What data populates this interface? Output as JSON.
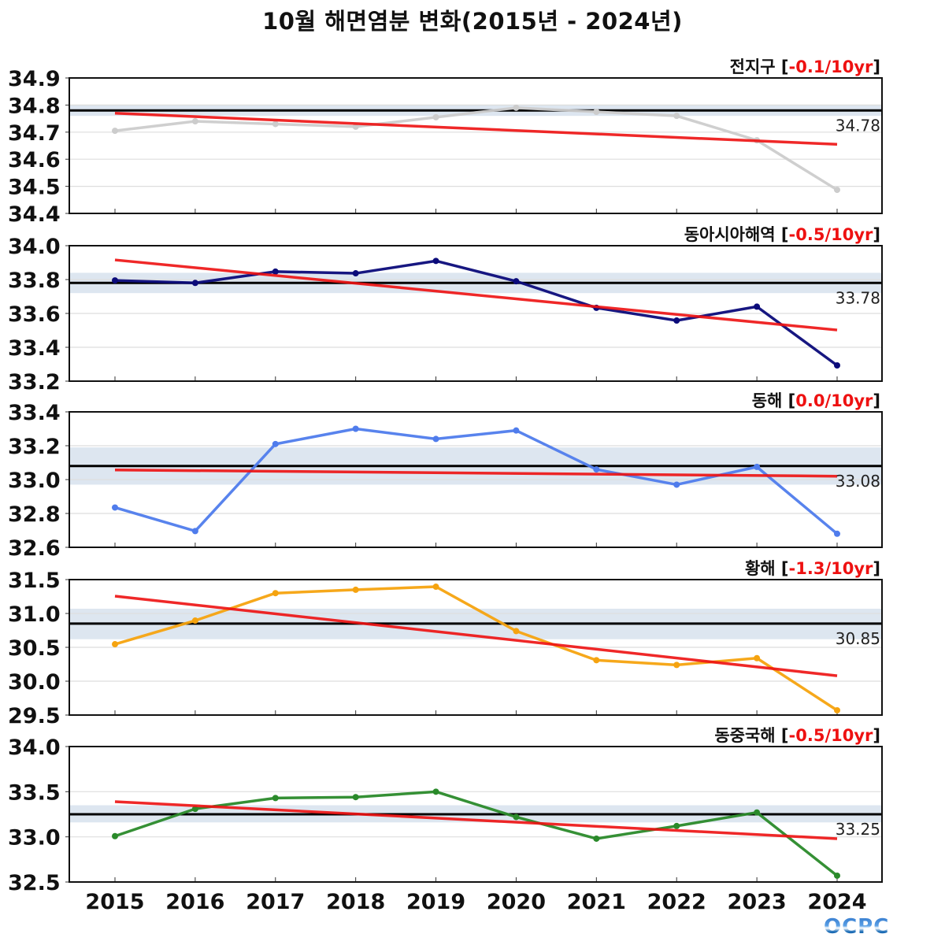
{
  "title": "10월 해면염분 변화(2015년 - 2024년)",
  "logo": "OCPC",
  "chart_data": {
    "type": "line",
    "title": "10월 해면염분 변화(2015년 - 2024년)",
    "xlabel": "",
    "ylabel": "",
    "x": [
      2015,
      2016,
      2017,
      2018,
      2019,
      2020,
      2021,
      2022,
      2023,
      2024
    ],
    "x_tick_labels": [
      "2015",
      "2016",
      "2017",
      "2018",
      "2019",
      "2020",
      "2021",
      "2022",
      "2023",
      "2024"
    ],
    "grid": true,
    "panels": [
      {
        "name": "전지구",
        "trend_label": "-0.1/10yr",
        "color": "#cccccc",
        "ylim": [
          34.4,
          34.9
        ],
        "yticks": [
          "34.4",
          "34.5",
          "34.6",
          "34.7",
          "34.8",
          "34.9"
        ],
        "ytick_values": [
          34.4,
          34.5,
          34.6,
          34.7,
          34.8,
          34.9
        ],
        "values": [
          34.705,
          34.74,
          34.73,
          34.72,
          34.755,
          34.79,
          34.775,
          34.76,
          34.67,
          34.487
        ],
        "mean": 34.78,
        "mean_label": "34.78",
        "band": [
          34.76,
          34.8
        ],
        "trend": [
          34.77,
          34.655
        ]
      },
      {
        "name": "동아시아해역",
        "trend_label": "-0.5/10yr",
        "color": "#0b0b7a",
        "ylim": [
          33.2,
          34.0
        ],
        "yticks": [
          "33.2",
          "33.4",
          "33.6",
          "33.8",
          "34.0"
        ],
        "ytick_values": [
          33.2,
          33.4,
          33.6,
          33.8,
          34.0
        ],
        "values": [
          33.795,
          33.78,
          33.847,
          33.837,
          33.91,
          33.79,
          33.633,
          33.558,
          33.64,
          33.293
        ],
        "mean": 33.78,
        "mean_label": "33.78",
        "band": [
          33.72,
          33.84
        ],
        "trend": [
          33.916,
          33.502
        ]
      },
      {
        "name": "동해",
        "trend_label": "0.0/10yr",
        "color": "#4f7cec",
        "ylim": [
          32.6,
          33.4
        ],
        "yticks": [
          "32.6",
          "32.8",
          "33.0",
          "33.2",
          "33.4"
        ],
        "ytick_values": [
          32.6,
          32.8,
          33.0,
          33.2,
          33.4
        ],
        "values": [
          32.835,
          32.696,
          33.21,
          33.3,
          33.24,
          33.29,
          33.06,
          32.97,
          33.075,
          32.68
        ],
        "mean": 33.08,
        "mean_label": "33.08",
        "band": [
          32.97,
          33.19
        ],
        "trend": [
          33.057,
          33.02
        ]
      },
      {
        "name": "황해",
        "trend_label": "-1.3/10yr",
        "color": "#f5a30f",
        "ylim": [
          29.5,
          31.5
        ],
        "yticks": [
          "29.5",
          "30.0",
          "30.5",
          "31.0",
          "31.5"
        ],
        "ytick_values": [
          29.5,
          30.0,
          30.5,
          31.0,
          31.5
        ],
        "values": [
          30.546,
          30.895,
          31.3,
          31.35,
          31.395,
          30.74,
          30.31,
          30.24,
          30.34,
          29.57
        ],
        "mean": 30.85,
        "mean_label": "30.85",
        "band": [
          30.62,
          31.07
        ],
        "trend": [
          31.256,
          30.08
        ]
      },
      {
        "name": "동중국해",
        "trend_label": "-0.5/10yr",
        "color": "#2a8a2a",
        "ylim": [
          32.5,
          34.0
        ],
        "yticks": [
          "32.5",
          "33.0",
          "33.5",
          "34.0"
        ],
        "ytick_values": [
          32.5,
          33.0,
          33.5,
          34.0
        ],
        "values": [
          33.008,
          33.31,
          33.43,
          33.44,
          33.5,
          33.22,
          32.98,
          33.12,
          33.27,
          32.57
        ],
        "mean": 33.25,
        "mean_label": "33.25",
        "band": [
          33.16,
          33.35
        ],
        "trend": [
          33.39,
          32.98
        ]
      }
    ]
  }
}
